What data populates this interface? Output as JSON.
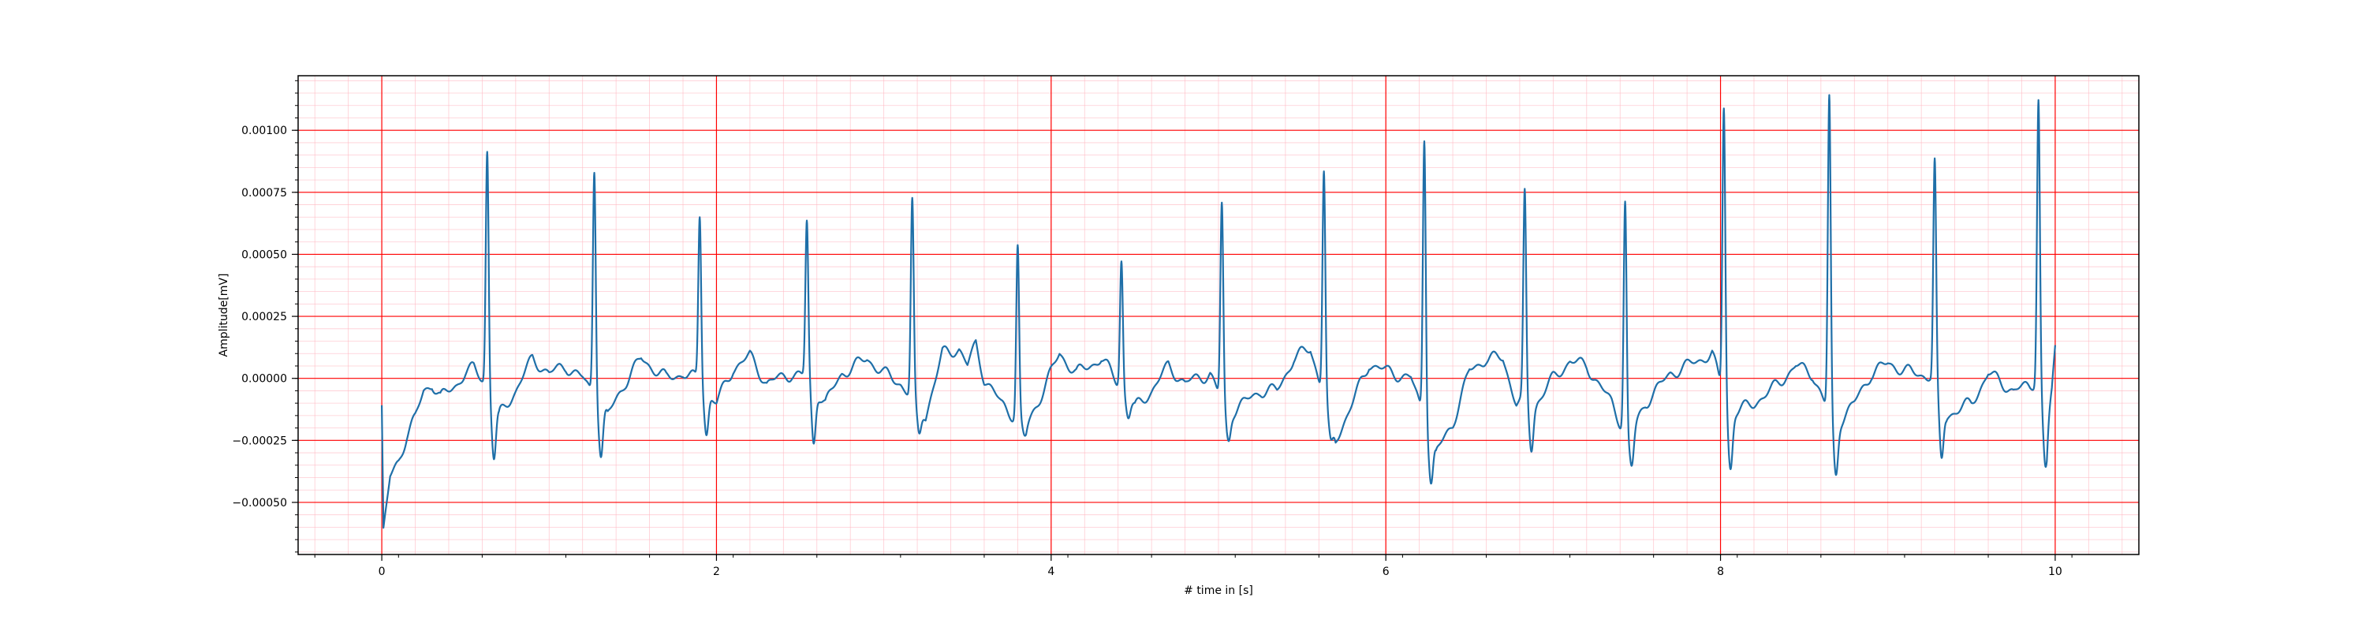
{
  "chart_data": {
    "type": "line",
    "title": "",
    "xlabel": "# time in [s]",
    "ylabel": "Amplitude[mV]",
    "xlim": [
      -0.5,
      10.5
    ],
    "ylim": [
      -0.00071,
      0.00122
    ],
    "x_ticks": [
      0,
      2,
      4,
      6,
      8,
      10
    ],
    "x_tick_labels": [
      "0",
      "2",
      "4",
      "6",
      "8",
      "10"
    ],
    "y_ticks": [
      -0.0005,
      -0.00025,
      0.0,
      0.00025,
      0.0005,
      0.00075,
      0.001
    ],
    "y_tick_labels": [
      "−0.00050",
      "−0.00025",
      "0.00000",
      "0.00025",
      "0.00050",
      "0.00075",
      "0.00100"
    ],
    "grid": true,
    "grid_color_major": "#ff0000",
    "grid_color_minor": "#ffb6c1",
    "line_color": "#1f6fa8",
    "series": [
      {
        "name": "",
        "x_start": 0.0,
        "x_end": 10.0,
        "baseline": [
          [
            0.0,
            -0.00012
          ],
          [
            0.01,
            -0.00062
          ],
          [
            0.05,
            -0.0004
          ],
          [
            0.1,
            -0.00033
          ],
          [
            0.15,
            -0.00023
          ],
          [
            0.2,
            -0.00016
          ],
          [
            0.25,
            -5e-05
          ],
          [
            0.3,
            -2e-05
          ],
          [
            0.35,
            -8e-05
          ],
          [
            0.4,
            -5e-05
          ],
          [
            0.45,
            -2e-05
          ],
          [
            0.5,
            2e-05
          ],
          [
            0.55,
            4e-05
          ],
          [
            0.6,
            0.0
          ],
          [
            0.7,
            -0.00015
          ],
          [
            0.8,
            -5e-05
          ],
          [
            0.9,
            8e-05
          ],
          [
            1.0,
            2e-05
          ],
          [
            1.1,
            5e-05
          ],
          [
            1.2,
            0.0
          ],
          [
            1.35,
            -0.00015
          ],
          [
            1.45,
            -2e-05
          ],
          [
            1.55,
            8e-05
          ],
          [
            1.7,
            0.0
          ],
          [
            1.8,
            2e-05
          ],
          [
            1.87,
            0.0
          ],
          [
            2.0,
            -0.0001
          ],
          [
            2.1,
            4e-05
          ],
          [
            2.2,
            9e-05
          ],
          [
            2.3,
            -2e-05
          ],
          [
            2.45,
            2e-05
          ],
          [
            2.55,
            0.0
          ],
          [
            2.65,
            -0.0001
          ],
          [
            2.75,
            2e-05
          ],
          [
            2.9,
            8e-05
          ],
          [
            3.0,
            2e-05
          ],
          [
            3.1,
            -2e-05
          ],
          [
            3.25,
            -0.00015
          ],
          [
            3.35,
            0.0001
          ],
          [
            3.45,
            0.00012
          ],
          [
            3.5,
            5e-05
          ],
          [
            3.55,
            0.00014
          ],
          [
            3.6,
            0.0
          ],
          [
            3.7,
            -0.0001
          ],
          [
            3.85,
            -0.0002
          ],
          [
            3.95,
            -5e-05
          ],
          [
            4.05,
            0.0001
          ],
          [
            4.15,
            2e-05
          ],
          [
            4.3,
            8e-05
          ],
          [
            4.38,
            0.0
          ],
          [
            4.5,
            -0.00012
          ],
          [
            4.6,
            -5e-05
          ],
          [
            4.7,
            5e-05
          ],
          [
            4.8,
            -2e-05
          ],
          [
            4.95,
            2e-05
          ],
          [
            5.05,
            -0.00015
          ],
          [
            5.15,
            -0.0001
          ],
          [
            5.25,
            -5e-05
          ],
          [
            5.35,
            -5e-05
          ],
          [
            5.45,
            8e-05
          ],
          [
            5.55,
            0.00012
          ],
          [
            5.6,
            0.0
          ],
          [
            5.7,
            -0.00025
          ],
          [
            5.8,
            -0.0001
          ],
          [
            5.9,
            6e-05
          ],
          [
            6.0,
            3e-05
          ],
          [
            6.15,
            0.0
          ],
          [
            6.3,
            -0.0003
          ],
          [
            6.4,
            -0.00018
          ],
          [
            6.5,
            3e-05
          ],
          [
            6.6,
            8e-05
          ],
          [
            6.7,
            8e-05
          ],
          [
            6.78,
            -0.0001
          ],
          [
            6.9,
            -0.0001
          ],
          [
            7.0,
            0.0
          ],
          [
            7.1,
            7e-05
          ],
          [
            7.2,
            5e-05
          ],
          [
            7.35,
            -0.0001
          ],
          [
            7.45,
            -0.00025
          ],
          [
            7.55,
            -0.0001
          ],
          [
            7.7,
            2e-05
          ],
          [
            7.8,
            5e-05
          ],
          [
            7.95,
            0.0001
          ],
          [
            8.05,
            -0.00015
          ],
          [
            8.2,
            -0.0001
          ],
          [
            8.3,
            -5e-05
          ],
          [
            8.45,
            5e-05
          ],
          [
            8.55,
            2e-05
          ],
          [
            8.68,
            -0.0002
          ],
          [
            8.8,
            -0.0001
          ],
          [
            8.9,
            2e-05
          ],
          [
            9.0,
            6e-05
          ],
          [
            9.15,
            2e-05
          ],
          [
            9.25,
            1e-05
          ],
          [
            9.35,
            -0.00015
          ],
          [
            9.5,
            -0.0001
          ],
          [
            9.6,
            2e-05
          ],
          [
            9.75,
            -5e-05
          ],
          [
            9.85,
            -3e-05
          ],
          [
            9.9,
            0.0
          ],
          [
            9.95,
            -0.0002
          ],
          [
            9.98,
            -5e-05
          ],
          [
            10.0,
            0.00012
          ]
        ],
        "r_peaks": [
          [
            0.63,
            0.00092
          ],
          [
            1.27,
            0.00085
          ],
          [
            1.9,
            0.00066
          ],
          [
            2.54,
            0.00063
          ],
          [
            3.17,
            0.00071
          ],
          [
            3.8,
            0.00053
          ],
          [
            4.42,
            0.00048
          ],
          [
            5.02,
            0.0007
          ],
          [
            5.63,
            0.00084
          ],
          [
            6.23,
            0.00098
          ],
          [
            6.83,
            0.00074
          ],
          [
            7.43,
            0.00071
          ],
          [
            8.02,
            0.0011
          ],
          [
            8.65,
            0.00113
          ],
          [
            9.28,
            0.00087
          ],
          [
            9.9,
            0.00113
          ]
        ],
        "s_troughs": [
          [
            0.67,
            -0.00032
          ],
          [
            1.31,
            -0.00031
          ],
          [
            1.94,
            -0.00022
          ],
          [
            2.58,
            -0.00026
          ],
          [
            3.21,
            -0.00023
          ],
          [
            3.84,
            -0.00024
          ],
          [
            4.46,
            -0.00015
          ],
          [
            5.06,
            -0.00025
          ],
          [
            5.67,
            -0.00027
          ],
          [
            6.27,
            -0.00042
          ],
          [
            6.87,
            -0.00028
          ],
          [
            7.47,
            -0.00036
          ],
          [
            8.06,
            -0.00036
          ],
          [
            8.69,
            -0.00039
          ],
          [
            9.32,
            -0.00033
          ],
          [
            9.94,
            -0.00036
          ]
        ]
      }
    ]
  }
}
